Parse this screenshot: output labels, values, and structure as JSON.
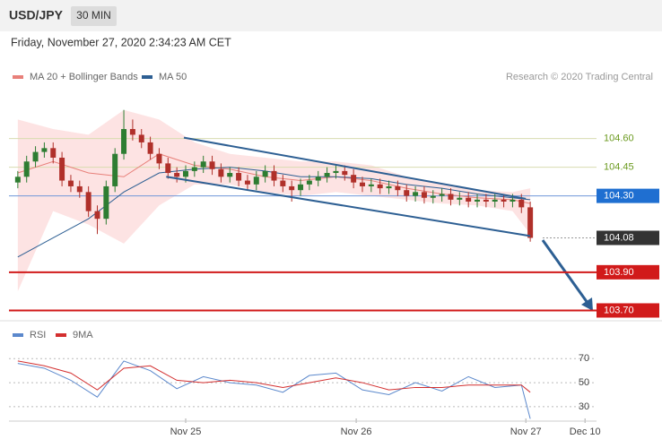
{
  "header": {
    "symbol": "USD/JPY",
    "interval": "30 MIN",
    "timestamp": "Friday, November 27, 2020 2:34:23 AM CET",
    "attribution": "Research © 2020 Trading Central"
  },
  "chart_data": [
    {
      "type": "candlestick",
      "up_color": "#2e7d32",
      "down_color": "#b0302a",
      "xlim": [
        -1,
        65.5
      ],
      "ylim": [
        103.66,
        104.88
      ],
      "xticks": [
        {
          "value": 19,
          "label": "Nov 25"
        },
        {
          "value": 38.3,
          "label": "Nov 26"
        },
        {
          "value": 57.5,
          "label": "Nov 27"
        },
        {
          "value": 64.2,
          "label": "Dec 10"
        }
      ],
      "ohlc": {
        "open": [
          104.37,
          104.4,
          104.48,
          104.53,
          104.55,
          104.5,
          104.38,
          104.35,
          104.32,
          104.22,
          104.18,
          104.35,
          104.52,
          104.65,
          104.62,
          104.58,
          104.52,
          104.47,
          104.42,
          104.4,
          104.43,
          104.45,
          104.48,
          104.44,
          104.4,
          104.42,
          104.38,
          104.36,
          104.4,
          104.43,
          104.38,
          104.35,
          104.33,
          104.36,
          104.38,
          104.4,
          104.42,
          104.43,
          104.41,
          104.37,
          104.35,
          104.36,
          104.34,
          104.35,
          104.33,
          104.3,
          104.32,
          104.29,
          104.3,
          104.31,
          104.28,
          104.29,
          104.27,
          104.28,
          104.27,
          104.28,
          104.27,
          104.28,
          104.24
        ],
        "high": [
          104.43,
          104.51,
          104.56,
          104.58,
          104.58,
          104.53,
          104.41,
          104.38,
          104.35,
          104.25,
          104.38,
          104.55,
          104.75,
          104.7,
          104.65,
          104.61,
          104.55,
          104.5,
          104.45,
          104.46,
          104.48,
          104.51,
          104.51,
          104.47,
          104.45,
          104.45,
          104.41,
          104.43,
          104.46,
          104.46,
          104.41,
          104.38,
          104.39,
          104.41,
          104.43,
          104.45,
          104.46,
          104.46,
          104.44,
          104.4,
          104.39,
          104.39,
          104.38,
          104.38,
          104.36,
          104.35,
          104.35,
          104.33,
          104.34,
          104.34,
          104.32,
          104.32,
          104.31,
          104.31,
          104.31,
          104.31,
          104.31,
          104.31,
          104.27
        ],
        "low": [
          104.34,
          104.37,
          104.45,
          104.5,
          104.47,
          104.35,
          104.32,
          104.29,
          104.19,
          104.1,
          104.15,
          104.32,
          104.49,
          104.59,
          104.55,
          104.49,
          104.44,
          104.39,
          104.37,
          104.37,
          104.4,
          104.42,
          104.41,
          104.37,
          104.37,
          104.35,
          104.33,
          104.33,
          104.37,
          104.35,
          104.32,
          104.27,
          104.3,
          104.33,
          104.35,
          104.37,
          104.39,
          104.38,
          104.34,
          104.32,
          104.32,
          104.31,
          104.31,
          104.3,
          104.27,
          104.27,
          104.26,
          104.26,
          104.27,
          104.25,
          104.25,
          104.24,
          104.24,
          104.24,
          104.24,
          104.24,
          104.24,
          104.21,
          104.06
        ],
        "close": [
          104.4,
          104.48,
          104.53,
          104.55,
          104.5,
          104.38,
          104.35,
          104.32,
          104.22,
          104.18,
          104.35,
          104.52,
          104.65,
          104.62,
          104.58,
          104.52,
          104.47,
          104.42,
          104.4,
          104.43,
          104.45,
          104.48,
          104.44,
          104.4,
          104.42,
          104.38,
          104.36,
          104.4,
          104.43,
          104.38,
          104.35,
          104.33,
          104.36,
          104.38,
          104.4,
          104.42,
          104.43,
          104.41,
          104.37,
          104.35,
          104.36,
          104.34,
          104.35,
          104.33,
          104.3,
          104.32,
          104.29,
          104.3,
          104.31,
          104.28,
          104.29,
          104.27,
          104.28,
          104.27,
          104.28,
          104.27,
          104.28,
          104.24,
          104.08
        ]
      },
      "overlays": [
        {
          "name": "MA 20 + Bollinger Bands",
          "color": "#e8807a",
          "band_color": "#fde3e3",
          "x": [
            0,
            4,
            8,
            12,
            16,
            20,
            24,
            28,
            32,
            36,
            40,
            44,
            48,
            52,
            56,
            58
          ],
          "values": [
            104.42,
            104.48,
            104.42,
            104.4,
            104.52,
            104.46,
            104.44,
            104.4,
            104.38,
            104.4,
            104.38,
            104.34,
            104.31,
            104.29,
            104.28,
            104.26
          ],
          "upper": [
            104.7,
            104.65,
            104.62,
            104.75,
            104.7,
            104.58,
            104.52,
            104.5,
            104.48,
            104.48,
            104.46,
            104.4,
            104.36,
            104.33,
            104.32,
            104.34
          ],
          "lower": [
            103.8,
            104.22,
            104.15,
            104.05,
            104.25,
            104.36,
            104.36,
            104.32,
            104.3,
            104.32,
            104.3,
            104.28,
            104.26,
            104.25,
            104.22,
            104.1
          ]
        },
        {
          "name": "MA 50",
          "color": "#2d5f93",
          "x": [
            0,
            4,
            8,
            12,
            16,
            20,
            24,
            28,
            32,
            36,
            40,
            44,
            48,
            52,
            56,
            58
          ],
          "values": [
            103.98,
            104.08,
            104.18,
            104.32,
            104.42,
            104.44,
            104.45,
            104.43,
            104.4,
            104.4,
            104.39,
            104.36,
            104.34,
            104.31,
            104.29,
            104.28
          ]
        }
      ],
      "trendlines": [
        {
          "color": "#2d5f93",
          "x": [
            18.8,
            57.5
          ],
          "values": [
            104.605,
            104.285
          ]
        },
        {
          "color": "#2d5f93",
          "x": [
            16.8,
            58
          ],
          "values": [
            104.4,
            104.09
          ]
        }
      ],
      "levels": [
        {
          "value": 104.6,
          "label": "104.60",
          "color": "#6b9a1f",
          "line_color": "#d8dcb0",
          "box": false
        },
        {
          "value": 104.45,
          "label": "104.45",
          "color": "#6b9a1f",
          "line_color": "#d8dcb0",
          "box": false
        },
        {
          "value": 104.3,
          "label": "104.30",
          "color": "#1f6fd1",
          "line_color": "#6f96d8",
          "box": true
        },
        {
          "value": 104.08,
          "label": "104.08",
          "color": "#333333",
          "line_color": "#999999",
          "box": true,
          "dotted": true
        },
        {
          "value": 103.9,
          "label": "103.90",
          "color": "#d11a1a",
          "line_color": "#d11a1a",
          "box": true
        },
        {
          "value": 103.7,
          "label": "103.70",
          "color": "#d11a1a",
          "line_color": "#d11a1a",
          "box": true
        }
      ]
    },
    {
      "type": "line",
      "xlim": [
        -1,
        65.5
      ],
      "ylim": [
        18,
        100
      ],
      "yticks": [
        70,
        50,
        30
      ],
      "x": [
        0,
        3,
        6,
        9,
        12,
        15,
        18,
        21,
        24,
        27,
        30,
        33,
        36,
        39,
        42,
        45,
        48,
        51,
        54,
        57,
        58
      ],
      "series": [
        {
          "name": "RSI",
          "color": "#5b88cc",
          "values": [
            66,
            62,
            52,
            38,
            68,
            60,
            45,
            55,
            50,
            48,
            42,
            56,
            58,
            44,
            40,
            50,
            43,
            55,
            46,
            48,
            20
          ]
        },
        {
          "name": "9MA",
          "color": "#d32f2f",
          "values": [
            68,
            64,
            58,
            44,
            62,
            64,
            52,
            50,
            52,
            50,
            46,
            50,
            54,
            50,
            44,
            46,
            46,
            48,
            48,
            48,
            42
          ]
        }
      ]
    }
  ]
}
